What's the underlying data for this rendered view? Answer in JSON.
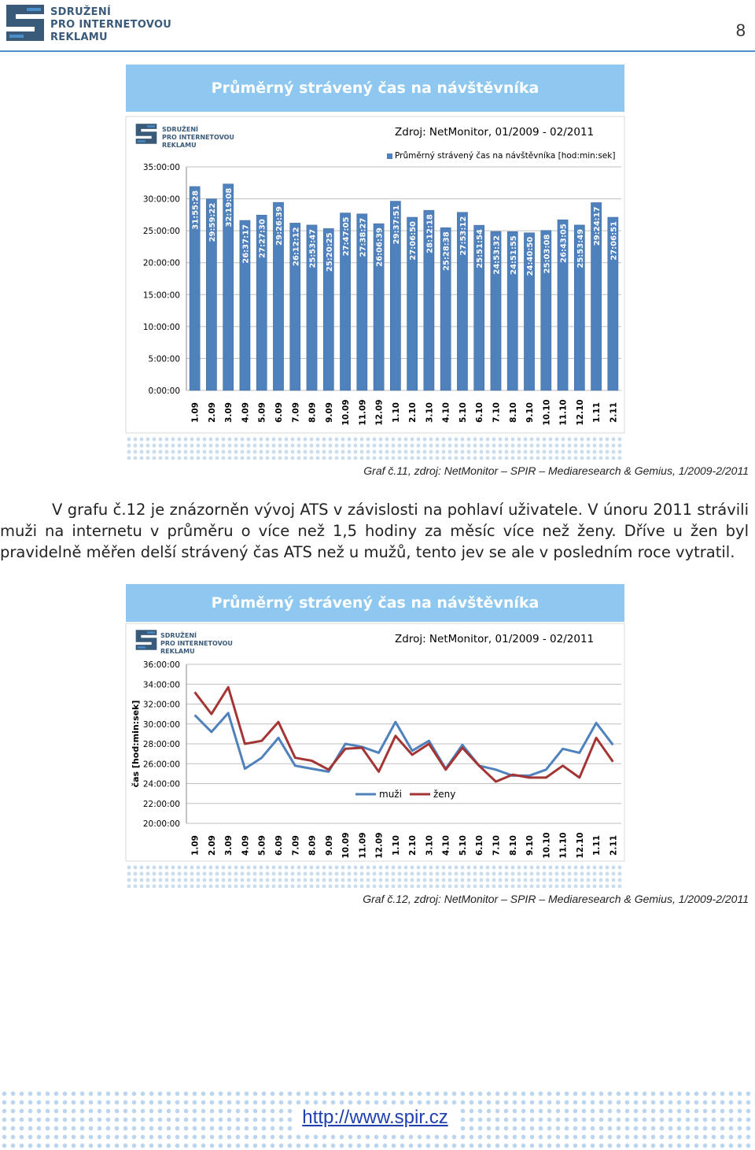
{
  "header": {
    "logo_lines": [
      "SDRUŽENÍ",
      "PRO INTERNETOVOU",
      "REKLAMU"
    ],
    "page_number": "8",
    "accent_color": "#4a8fcb"
  },
  "chart1": {
    "banner_title": "Průměrný strávený čas na návštěvníka",
    "logo_lines": [
      "SDRUŽENÍ",
      "PRO INTERNETOVOU",
      "REKLAMU"
    ],
    "source": "Zdroj: NetMonitor, 01/2009 - 02/2011",
    "legend": "Průměrný strávený čas na návštěvníka [hod:min:sek]",
    "caption": "Graf č.11, zdroj: NetMonitor – SPIR – Mediaresearch & Gemius, 1/2009-2/2011"
  },
  "paragraph": "V grafu č.12 je znázorněn vývoj ATS v závislosti na pohlaví uživatele. V únoru 2011 strávili muži na internetu v průměru o více než 1,5 hodiny za měsíc více než ženy. Dříve u žen byl pravidelně měřen delší strávený čas ATS než u mužů, tento jev se ale v posledním roce vytratil.",
  "chart2": {
    "banner_title": "Průměrný strávený čas na návštěvníka",
    "logo_lines": [
      "SDRUŽENÍ",
      "PRO INTERNETOVOU",
      "REKLAMU"
    ],
    "source": "Zdroj: NetMonitor, 01/2009 - 02/2011",
    "caption": "Graf č.12, zdroj: NetMonitor – SPIR – Mediaresearch & Gemius, 1/2009-2/2011"
  },
  "footer": {
    "link": "http://www.spir.cz"
  },
  "chart_data": [
    {
      "type": "bar",
      "title": "Průměrný strávený čas na návštěvníka",
      "categories": [
        "1.09",
        "2.09",
        "3.09",
        "4.09",
        "5.09",
        "6.09",
        "7.09",
        "8.09",
        "9.09",
        "10.09",
        "11.09",
        "12.09",
        "1.10",
        "2.10",
        "3.10",
        "4.10",
        "5.10",
        "6.10",
        "7.10",
        "8.10",
        "9.10",
        "10.10",
        "11.10",
        "12.10",
        "1.11",
        "2.11"
      ],
      "labels": [
        "31:55:28",
        "29:59:22",
        "32:19:08",
        "26:37:17",
        "27:27:30",
        "29:26:39",
        "26:12:12",
        "25:53:47",
        "25:20:25",
        "27:47:05",
        "27:38:27",
        "26:06:39",
        "29:37:51",
        "27:06:50",
        "28:12:18",
        "25:28:38",
        "27:53:12",
        "25:51:54",
        "24:53:32",
        "24:51:55",
        "24:40:50",
        "25:03:08",
        "26:43:05",
        "25:53:49",
        "29:24:17",
        "27:06:51"
      ],
      "values": [
        31.924,
        29.989,
        32.319,
        26.621,
        27.458,
        29.444,
        26.203,
        25.896,
        25.34,
        27.785,
        27.641,
        26.111,
        29.631,
        27.114,
        28.205,
        25.477,
        27.887,
        25.865,
        24.892,
        24.865,
        24.681,
        25.052,
        26.718,
        25.897,
        29.405,
        27.114
      ],
      "y_unit": "hours",
      "y_tick_labels": [
        "0:00:00",
        "5:00:00",
        "10:00:00",
        "15:00:00",
        "20:00:00",
        "25:00:00",
        "30:00:00",
        "35:00:00"
      ],
      "ylim": [
        0,
        35
      ],
      "legend": [
        "Průměrný strávený čas na návštěvníka [hod:min:sek]"
      ],
      "color": "#4f81bd"
    },
    {
      "type": "line",
      "title": "Průměrný strávený čas na návštěvníka",
      "ylabel": "čas [hod:min:sek]",
      "categories": [
        "1.09",
        "2.09",
        "3.09",
        "4.09",
        "5.09",
        "6.09",
        "7.09",
        "8.09",
        "9.09",
        "10.09",
        "11.09",
        "12.09",
        "1.10",
        "2.10",
        "3.10",
        "4.10",
        "5.10",
        "6.10",
        "7.10",
        "8.10",
        "9.10",
        "10.10",
        "11.10",
        "12.10",
        "1.11",
        "2.11"
      ],
      "series": [
        {
          "name": "muži",
          "color": "#4f81bd",
          "values": [
            30.9,
            29.2,
            31.1,
            25.5,
            26.6,
            28.6,
            25.8,
            25.5,
            25.2,
            28.0,
            27.7,
            27.1,
            30.2,
            27.3,
            28.3,
            25.5,
            27.9,
            25.8,
            25.4,
            24.8,
            24.8,
            25.4,
            27.5,
            27.1,
            30.1,
            27.9
          ]
        },
        {
          "name": "ženy",
          "color": "#a33535",
          "values": [
            33.2,
            31.0,
            33.7,
            28.0,
            28.3,
            30.2,
            26.6,
            26.3,
            25.4,
            27.5,
            27.6,
            25.2,
            28.8,
            26.9,
            28.0,
            25.4,
            27.6,
            25.8,
            24.2,
            24.9,
            24.6,
            24.6,
            25.8,
            24.6,
            28.6,
            26.2
          ]
        }
      ],
      "y_tick_labels": [
        "20:00:00",
        "22:00:00",
        "24:00:00",
        "26:00:00",
        "28:00:00",
        "30:00:00",
        "32:00:00",
        "34:00:00",
        "36:00:00"
      ],
      "ylim": [
        20,
        36
      ],
      "legend": [
        "muži",
        "ženy"
      ]
    }
  ]
}
